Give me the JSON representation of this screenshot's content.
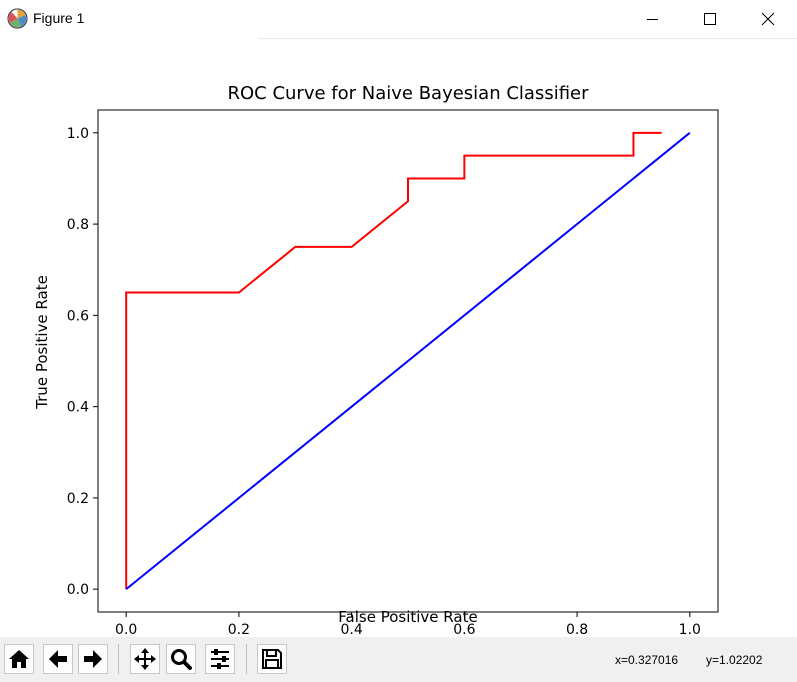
{
  "window": {
    "title": "Figure 1",
    "icon": "matplotlib-figure-icon"
  },
  "chart_data": {
    "type": "line",
    "title": "ROC Curve for Naive Bayesian Classifier",
    "xlabel": "False Positive Rate",
    "ylabel": "True Positive Rate",
    "xlim": [
      -0.05,
      1.05
    ],
    "ylim": [
      -0.05,
      1.05
    ],
    "xticks": [
      0.0,
      0.2,
      0.4,
      0.6,
      0.8,
      1.0
    ],
    "xtick_labels": [
      "0.0",
      "0.2",
      "0.4",
      "0.6",
      "0.8",
      "1.0"
    ],
    "yticks": [
      0.0,
      0.2,
      0.4,
      0.6,
      0.8,
      1.0
    ],
    "ytick_labels": [
      "0.0",
      "0.2",
      "0.4",
      "0.6",
      "0.8",
      "1.0"
    ],
    "grid": false,
    "series": [
      {
        "color": "#ff0000",
        "x": [
          0.0,
          0.0,
          0.2,
          0.3,
          0.4,
          0.5,
          0.5,
          0.6,
          0.6,
          0.9,
          0.9,
          0.95
        ],
        "y": [
          0.0,
          0.65,
          0.65,
          0.75,
          0.75,
          0.85,
          0.9,
          0.9,
          0.95,
          0.95,
          1.0,
          1.0
        ]
      },
      {
        "color": "#0000ff",
        "x": [
          0.0,
          1.0
        ],
        "y": [
          0.0,
          1.0
        ]
      }
    ]
  },
  "toolbar": {
    "buttons": [
      {
        "name": "home-icon"
      },
      {
        "name": "back-arrow-icon"
      },
      {
        "name": "forward-arrow-icon"
      },
      {
        "name": "pan-icon"
      },
      {
        "name": "zoom-icon"
      },
      {
        "name": "subplots-config-icon"
      },
      {
        "name": "save-icon"
      }
    ],
    "x_readout": "x=0.327016",
    "y_readout": "y=1.02202"
  }
}
